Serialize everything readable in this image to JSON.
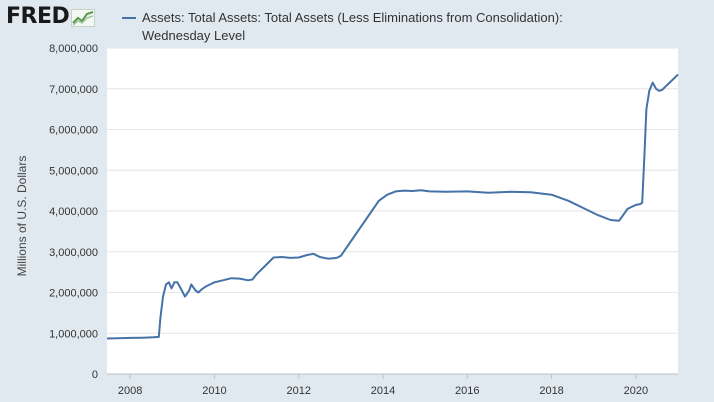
{
  "logo": {
    "text": "FRED",
    "icon": "chart-line-icon"
  },
  "chart_data": {
    "type": "line",
    "title": "",
    "xlabel": "",
    "ylabel": "Millions of U.S. Dollars",
    "xlim": [
      2007.45,
      2021.0
    ],
    "ylim": [
      0,
      8000000
    ],
    "grid": true,
    "legend_position": "top",
    "y_ticks": [
      0,
      1000000,
      2000000,
      3000000,
      4000000,
      5000000,
      6000000,
      7000000,
      8000000
    ],
    "y_tick_labels": [
      "0",
      "1,000,000",
      "2,000,000",
      "3,000,000",
      "4,000,000",
      "5,000,000",
      "6,000,000",
      "7,000,000",
      "8,000,000"
    ],
    "x_ticks": [
      2008,
      2010,
      2012,
      2014,
      2016,
      2018,
      2020
    ],
    "x_tick_labels": [
      "2008",
      "2010",
      "2012",
      "2014",
      "2016",
      "2018",
      "2020"
    ],
    "series": [
      {
        "name": "Assets: Total Assets: Total Assets (Less Eliminations from Consolidation): Wednesday Level",
        "color": "#4572a7",
        "x": [
          2007.45,
          2007.8,
          2008.0,
          2008.3,
          2008.55,
          2008.68,
          2008.72,
          2008.78,
          2008.85,
          2008.92,
          2008.98,
          2009.05,
          2009.12,
          2009.2,
          2009.3,
          2009.4,
          2009.45,
          2009.55,
          2009.62,
          2009.7,
          2009.8,
          2009.9,
          2010.0,
          2010.2,
          2010.4,
          2010.6,
          2010.8,
          2010.9,
          2011.0,
          2011.2,
          2011.4,
          2011.6,
          2011.8,
          2012.0,
          2012.2,
          2012.35,
          2012.5,
          2012.7,
          2012.9,
          2013.0,
          2013.1,
          2013.3,
          2013.5,
          2013.7,
          2013.9,
          2014.1,
          2014.3,
          2014.5,
          2014.7,
          2014.9,
          2015.1,
          2015.5,
          2016.0,
          2016.5,
          2017.0,
          2017.5,
          2018.0,
          2018.4,
          2018.8,
          2019.1,
          2019.4,
          2019.6,
          2019.7,
          2019.8,
          2019.9,
          2020.0,
          2020.1,
          2020.15,
          2020.2,
          2020.25,
          2020.32,
          2020.4,
          2020.48,
          2020.55,
          2020.62,
          2020.7,
          2020.8,
          2020.9,
          2021.0
        ],
        "values": [
          870000,
          880000,
          885000,
          890000,
          900000,
          910000,
          1400000,
          1900000,
          2200000,
          2250000,
          2100000,
          2250000,
          2250000,
          2100000,
          1900000,
          2050000,
          2200000,
          2050000,
          2000000,
          2080000,
          2150000,
          2200000,
          2250000,
          2300000,
          2350000,
          2340000,
          2300000,
          2320000,
          2450000,
          2650000,
          2860000,
          2870000,
          2850000,
          2860000,
          2920000,
          2950000,
          2870000,
          2830000,
          2850000,
          2900000,
          3050000,
          3350000,
          3650000,
          3950000,
          4250000,
          4400000,
          4480000,
          4500000,
          4490000,
          4510000,
          4480000,
          4470000,
          4480000,
          4450000,
          4470000,
          4460000,
          4400000,
          4250000,
          4050000,
          3900000,
          3780000,
          3760000,
          3900000,
          4050000,
          4100000,
          4150000,
          4170000,
          4200000,
          5300000,
          6500000,
          6950000,
          7150000,
          7000000,
          6950000,
          6970000,
          7050000,
          7150000,
          7250000,
          7350000
        ]
      }
    ]
  }
}
